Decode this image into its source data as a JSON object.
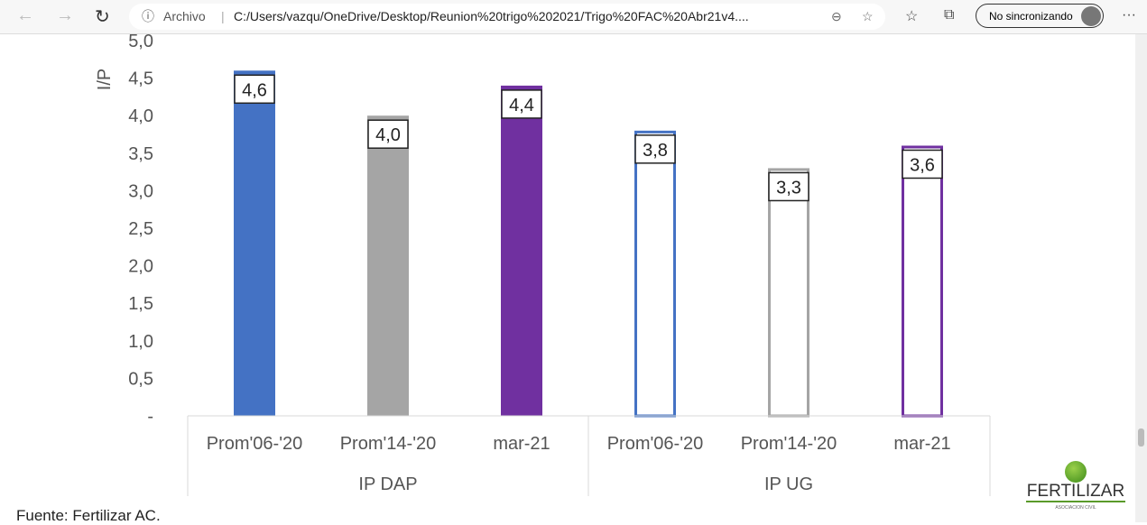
{
  "browser": {
    "address_prefix": "Archivo",
    "url": "C:/Users/vazqu/OneDrive/Desktop/Reunion%20trigo%202021/Trigo%20FAC%20Abr21v4....",
    "sync_label": "No sincronizando"
  },
  "footer": {
    "source": "Fuente: Fertilizar AC.",
    "logo_text": "FERTILIZAR",
    "logo_sub": "ASOCIACION CIVIL"
  },
  "chart_data": {
    "type": "bar",
    "ylabel": "I/P",
    "ylim": [
      0,
      5
    ],
    "yticks": [
      "-",
      "0,5",
      "1,0",
      "1,5",
      "2,0",
      "2,5",
      "3,0",
      "3,5",
      "4,0",
      "4,5",
      "5,0"
    ],
    "groups": [
      "IP DAP",
      "IP UG"
    ],
    "categories": [
      "Prom'06-'20",
      "Prom'14-'20",
      "mar-21",
      "Prom'06-'20",
      "Prom'14-'20",
      "mar-21"
    ],
    "values": [
      4.6,
      4.0,
      4.4,
      3.8,
      3.3,
      3.6
    ],
    "labels": [
      "4,6",
      "4,0",
      "4,4",
      "3,8",
      "3,3",
      "3,6"
    ],
    "colors": [
      "#4472C4",
      "#A5A5A5",
      "#7030A0",
      "#4472C4",
      "#A5A5A5",
      "#7030A0"
    ],
    "filled": [
      true,
      true,
      true,
      false,
      false,
      false
    ]
  }
}
